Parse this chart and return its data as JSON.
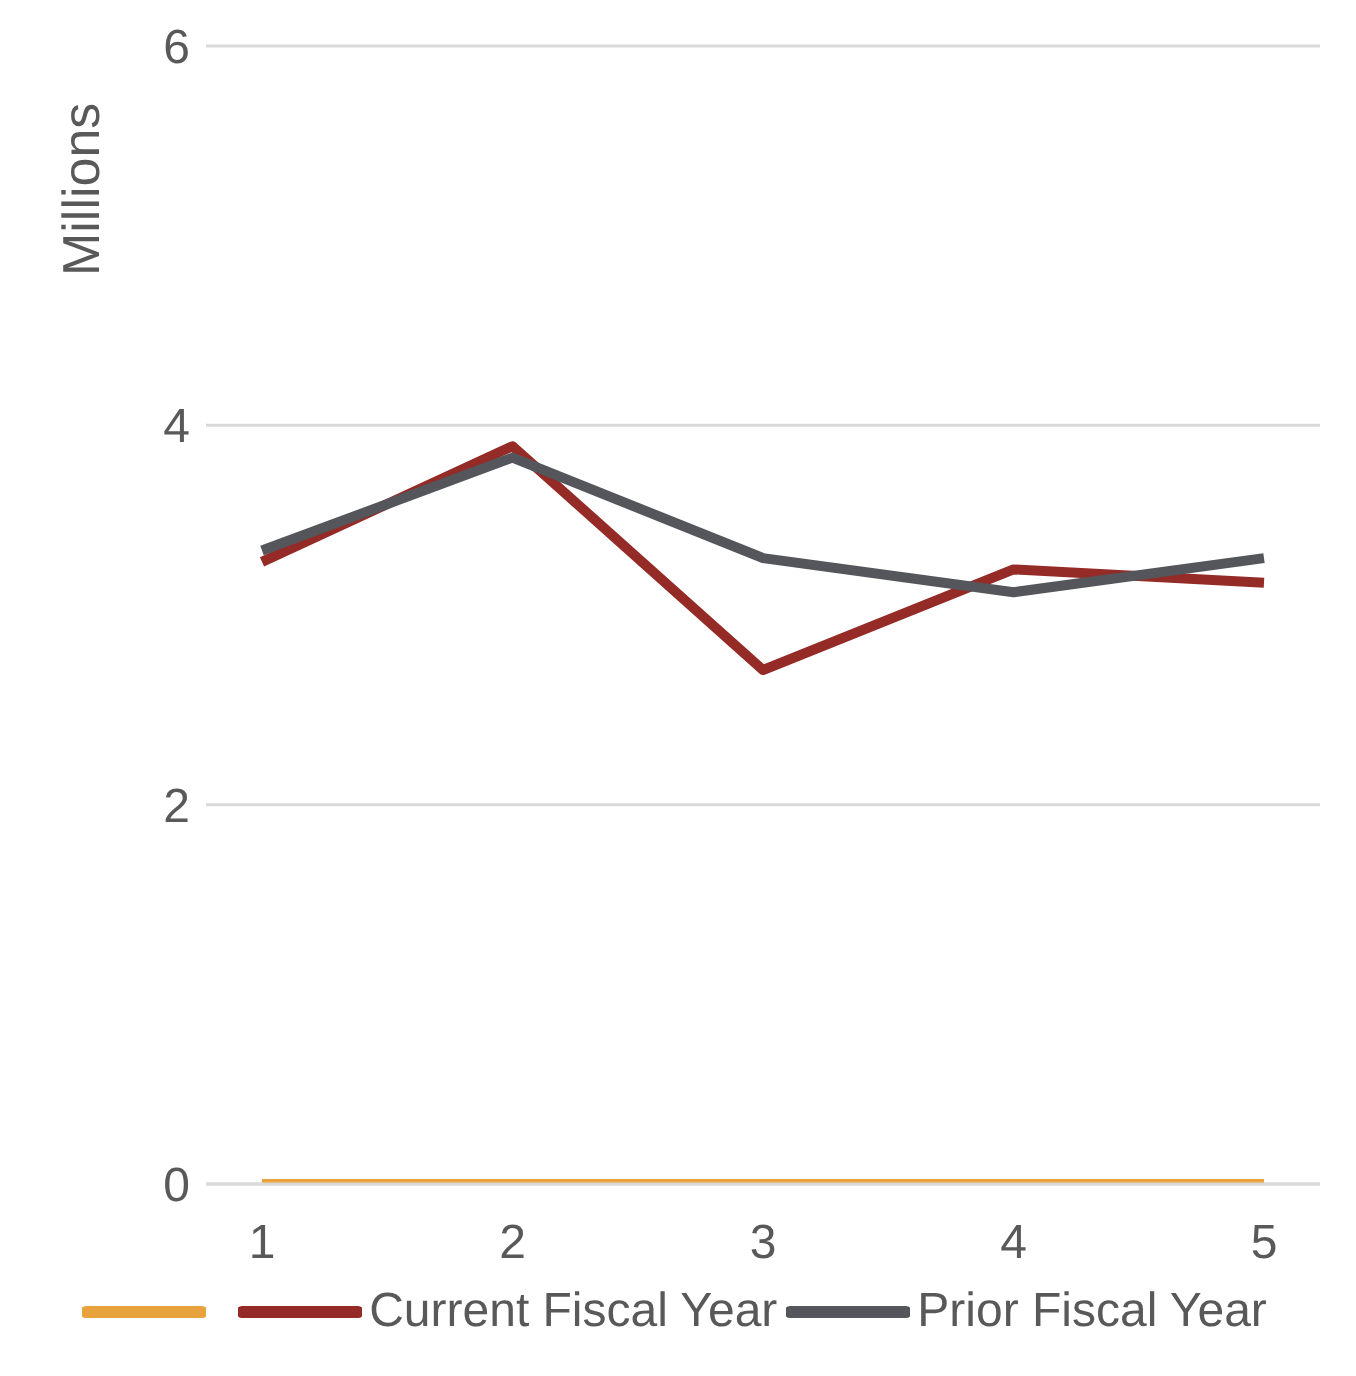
{
  "chart_data": {
    "type": "line",
    "ylabel": "Millions",
    "categories": [
      "1",
      "2",
      "3",
      "4",
      "5"
    ],
    "series": [
      {
        "color": "#e8a33d",
        "values": [
          0,
          0,
          0,
          0,
          0
        ]
      },
      {
        "name": "Current Fiscal Year",
        "color": "#952b27",
        "values": [
          3.28,
          3.89,
          2.71,
          3.24,
          3.17
        ]
      },
      {
        "name": "Prior Fiscal Year",
        "color": "#54565b",
        "values": [
          3.34,
          3.83,
          3.3,
          3.12,
          3.3
        ]
      }
    ],
    "ylim": [
      0,
      6
    ],
    "yticks": [
      0,
      2,
      4,
      6
    ],
    "grid": "y",
    "legend": "bottom",
    "marker": "none",
    "line_style": "solid"
  }
}
